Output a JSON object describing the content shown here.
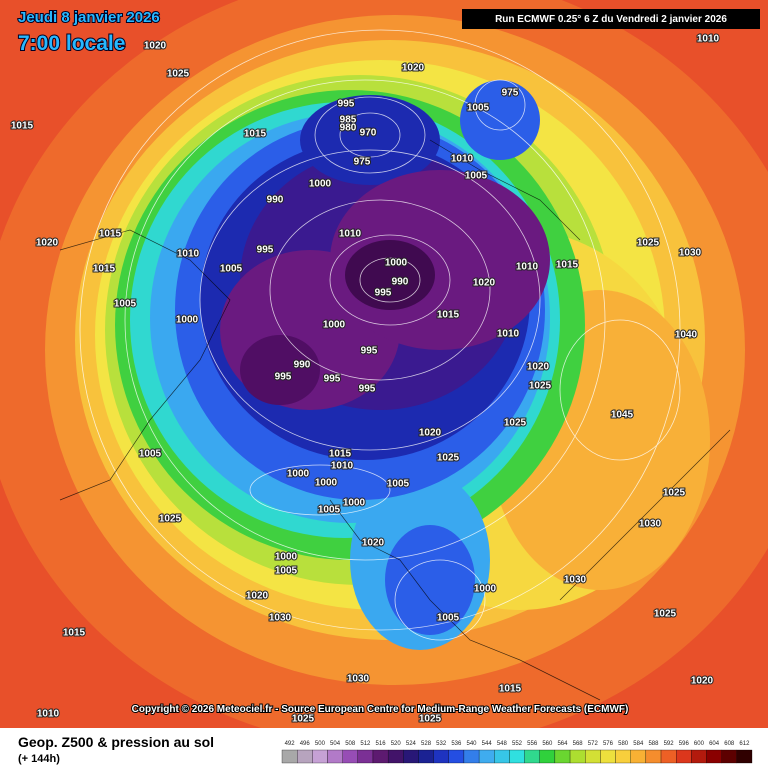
{
  "header": {
    "date": "Jeudi 8 janvier 2026",
    "time": "7:00 locale",
    "run": "Run ECMWF 0.25° 6 Z du Vendredi 2 janvier 2026"
  },
  "copyright": "Copyright © 2026 Meteociel.fr - Source European Centre for Medium-Range Weather Forecasts (ECMWF)",
  "legend": {
    "title": "Geop. Z500 & pression au sol",
    "lead": "(+ 144h)",
    "levels": [
      492,
      496,
      500,
      504,
      508,
      512,
      516,
      520,
      524,
      528,
      532,
      536,
      540,
      544,
      548,
      552,
      556,
      560,
      564,
      568,
      572,
      576,
      580,
      584,
      588,
      592,
      596,
      600,
      604,
      608,
      612
    ]
  },
  "isobar_labels": [
    "1020",
    "1025",
    "1015",
    "1020",
    "1010",
    "995",
    "985",
    "980",
    "970",
    "975",
    "1015",
    "975",
    "1005",
    "1010",
    "1005",
    "1000",
    "990",
    "995",
    "1010",
    "1010",
    "1005",
    "1020",
    "1015",
    "1015",
    "1005",
    "1000",
    "1000",
    "990",
    "995",
    "1000",
    "990",
    "995",
    "995",
    "995",
    "995",
    "1015",
    "1010",
    "1020",
    "1010",
    "1015",
    "1025",
    "1030",
    "1020",
    "1025",
    "1020",
    "1025",
    "1005",
    "1015",
    "1010",
    "1000",
    "1000",
    "1005",
    "1000",
    "1005",
    "1025",
    "1025",
    "1030",
    "1025",
    "1020",
    "1000",
    "1005",
    "1020",
    "1030",
    "1015",
    "1000",
    "1005",
    "1030",
    "1025",
    "1030",
    "1015",
    "1010",
    "1020",
    "1025",
    "1025",
    "1040",
    "1045"
  ]
}
